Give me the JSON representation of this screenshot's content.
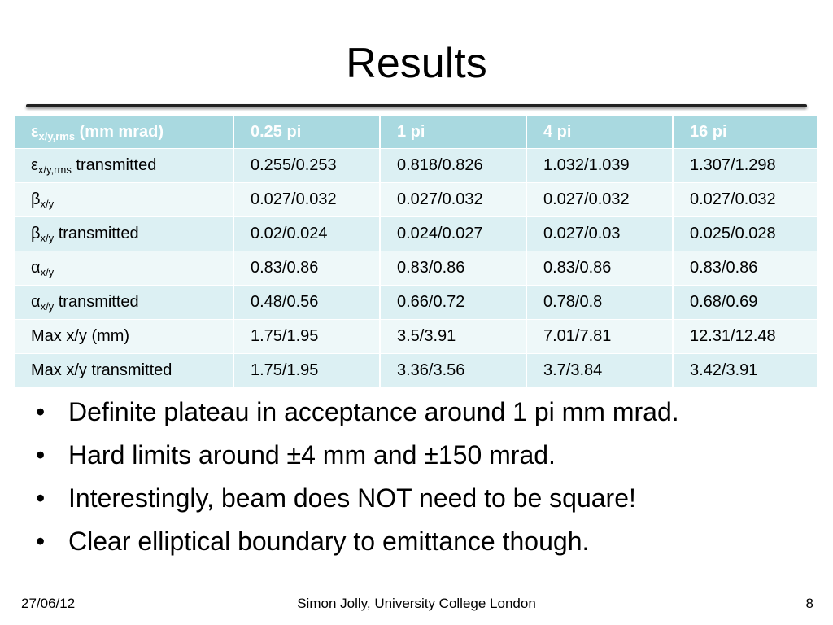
{
  "slide": {
    "title": "Results"
  },
  "table": {
    "header": {
      "sym": "ε",
      "sub": "x/y,rms",
      "rest": " (mm mrad)",
      "cols": [
        "0.25 pi",
        "1 pi",
        "4 pi",
        "16 pi"
      ]
    },
    "rows": [
      {
        "sym": "ε",
        "sub": "x/y,rms",
        "rest": " transmitted",
        "values": [
          "0.255/0.253",
          "0.818/0.826",
          "1.032/1.039",
          "1.307/1.298"
        ]
      },
      {
        "sym": "β",
        "sub": "x/y",
        "rest": "",
        "values": [
          "0.027/0.032",
          "0.027/0.032",
          "0.027/0.032",
          "0.027/0.032"
        ]
      },
      {
        "sym": "β",
        "sub": "x/y",
        "rest": " transmitted",
        "values": [
          "0.02/0.024",
          "0.024/0.027",
          "0.027/0.03",
          "0.025/0.028"
        ]
      },
      {
        "sym": "α",
        "sub": "x/y",
        "rest": "",
        "values": [
          "0.83/0.86",
          "0.83/0.86",
          "0.83/0.86",
          "0.83/0.86"
        ]
      },
      {
        "sym": "α",
        "sub": "x/y",
        "rest": " transmitted",
        "values": [
          "0.48/0.56",
          "0.66/0.72",
          "0.78/0.8",
          "0.68/0.69"
        ]
      },
      {
        "sym": "Max x/y (mm)",
        "sub": "",
        "rest": "",
        "values": [
          "1.75/1.95",
          "3.5/3.91",
          "7.01/7.81",
          "12.31/12.48"
        ]
      },
      {
        "sym": "Max x/y transmitted",
        "sub": "",
        "rest": "",
        "values": [
          "1.75/1.95",
          "3.36/3.56",
          "3.7/3.84",
          "3.42/3.91"
        ]
      }
    ]
  },
  "bullets": [
    "Definite plateau in acceptance around 1 pi mm mrad.",
    "Hard limits around ±4 mm and ±150 mrad.",
    "Interestingly, beam does NOT need to be square!",
    "Clear elliptical boundary to emittance though."
  ],
  "bullet_glyph": "•",
  "footer": {
    "date": "27/06/12",
    "author": "Simon Jolly, University College London",
    "page": "8"
  },
  "colors": {
    "header_bg": "#a9d9e0",
    "row_odd_bg": "#dcf0f3",
    "row_even_bg": "#eef8f9"
  }
}
